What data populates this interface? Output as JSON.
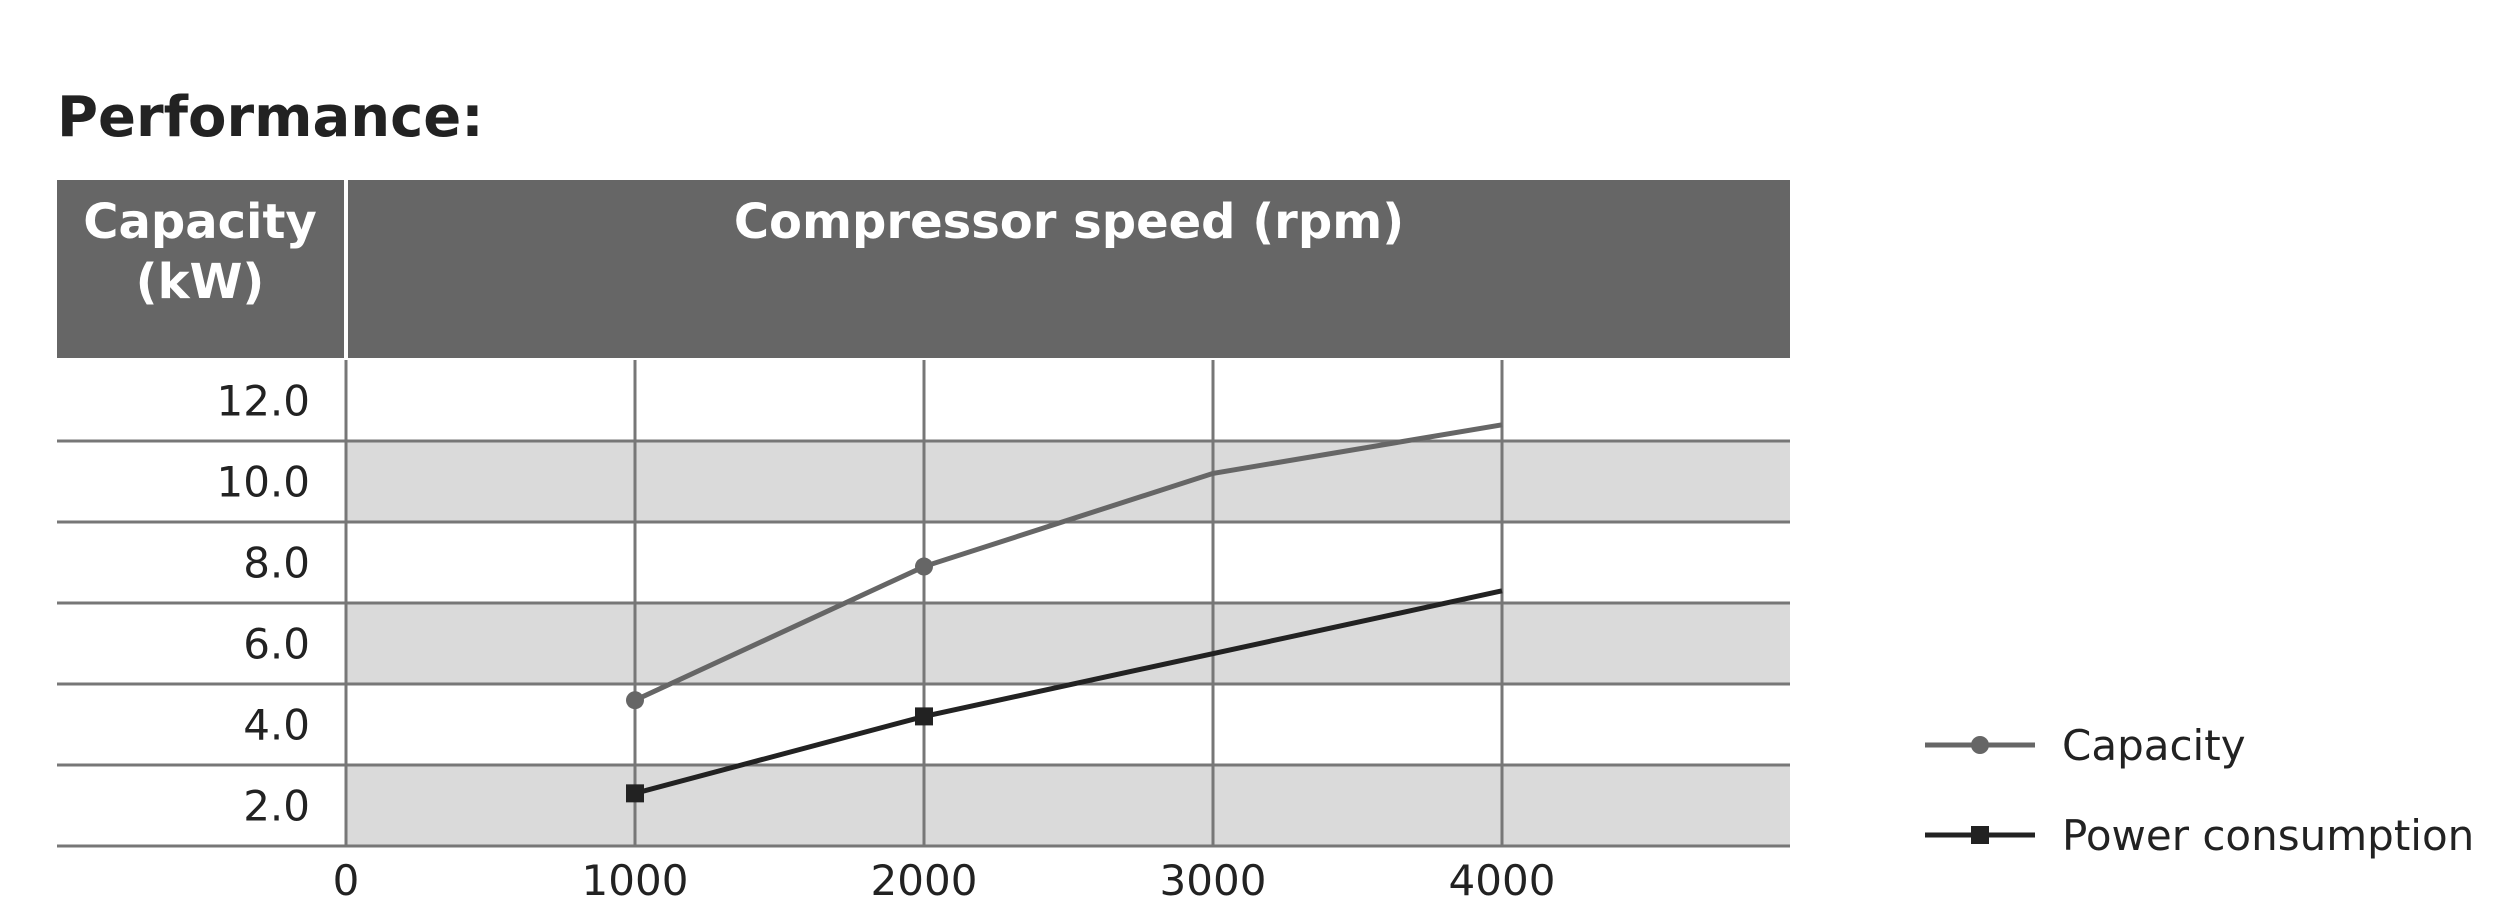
{
  "chart_data": {
    "type": "line",
    "title": "Performance:",
    "column_header_left": [
      "Capacity",
      "(kW)"
    ],
    "column_header_right": "Compressor speed (rpm)",
    "xlabel": "Compressor speed (rpm)",
    "ylabel": "Capacity (kW)",
    "xlim": [
      0,
      5000
    ],
    "ylim": [
      1.0,
      13.0
    ],
    "x_ticks": [
      "0",
      "1000",
      "2000",
      "3000",
      "4000"
    ],
    "y_ticks": [
      "12.0",
      "10.0",
      "8.0",
      "6.0",
      "4.0",
      "2.0"
    ],
    "grid": true,
    "legend_position": "right",
    "series": [
      {
        "name": "Capacity",
        "color": "#666666",
        "marker": "circle",
        "points": [
          {
            "x": 1000,
            "y": 4.6
          },
          {
            "x": 2000,
            "y": 7.9
          },
          {
            "x": 3000,
            "y": 10.2
          },
          {
            "x": 4000,
            "y": 11.4
          }
        ]
      },
      {
        "name": "Power consumption",
        "color": "#222222",
        "marker": "square",
        "points": [
          {
            "x": 1000,
            "y": 2.3
          },
          {
            "x": 2000,
            "y": 4.2
          },
          {
            "x": 4000,
            "y": 7.3
          }
        ]
      }
    ]
  },
  "colors": {
    "header_fill": "#666666",
    "band_fill": "#dadada",
    "grid_line": "#777777"
  }
}
